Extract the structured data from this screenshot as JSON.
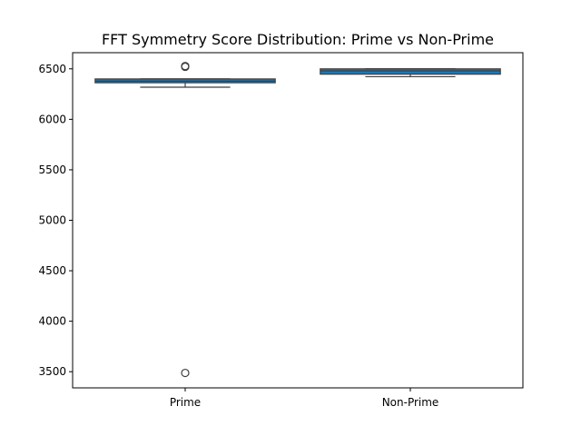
{
  "chart_data": {
    "type": "box",
    "title": "FFT Symmetry Score Distribution: Prime vs Non-Prime",
    "xlabel": "",
    "ylabel": "",
    "categories": [
      "Prime",
      "Non-Prime"
    ],
    "ylim": [
      3340,
      6660
    ],
    "yticks": [
      3500,
      4000,
      4500,
      5000,
      5500,
      6000,
      6500
    ],
    "grid": false,
    "box_color": "#1f77b4",
    "boxes": [
      {
        "category": "Prime",
        "whisker_low": 6318,
        "q1": 6362,
        "median": 6378,
        "q3": 6400,
        "whisker_high": 6400,
        "outliers": [
          6528,
          6520,
          3488
        ]
      },
      {
        "category": "Non-Prime",
        "whisker_low": 6422,
        "q1": 6447,
        "median": 6480,
        "q3": 6500,
        "whisker_high": 6500,
        "outliers": []
      }
    ]
  }
}
